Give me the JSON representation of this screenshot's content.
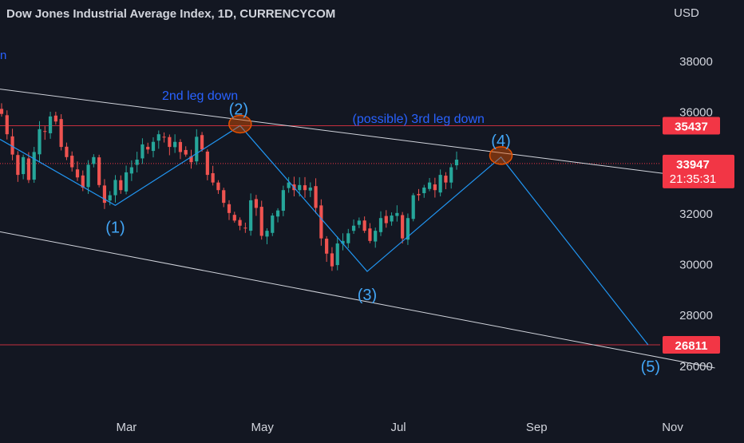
{
  "header": {
    "title": "Dow Jones Industrial Average Index, 1D, CURRENCYCOM",
    "currency": "USD",
    "left_stub": "n"
  },
  "colors": {
    "background": "#131722",
    "up": "#26a69a",
    "down": "#ef5350",
    "wave": "#2196f3",
    "channel": "#d1d4dc",
    "level": "#f23645",
    "annotation": "#2962ff",
    "wave_label": "#42a5f5",
    "pivot_circle": "#e65100"
  },
  "chart_data": {
    "type": "candlestick",
    "title": "Dow Jones Industrial Average Index, 1D, CURRENCYCOM",
    "ylabel": "USD",
    "ylim": [
      25000,
      40000
    ],
    "y_ticks": [
      26000,
      28000,
      30000,
      32000,
      34000,
      36000,
      38000
    ],
    "x_ticks": [
      "Mar",
      "May",
      "Jul",
      "Sep",
      "Nov"
    ],
    "current_price": {
      "value": "33947",
      "countdown": "21:35:31"
    },
    "levels": [
      {
        "label": "35437",
        "value": 35437
      },
      {
        "label": "26811",
        "value": 26811
      }
    ],
    "wave_points": [
      {
        "label": "(1)",
        "date": "2022-02-24",
        "value": 32300
      },
      {
        "label": "(2)",
        "date": "2022-04-21",
        "value": 35437
      },
      {
        "label": "(3)",
        "date": "2022-06-17",
        "value": 29700
      },
      {
        "label": "(4)",
        "date": "2022-08-16",
        "value": 34200
      },
      {
        "label": "(5)",
        "date": "2022-10-21",
        "value": 26811
      }
    ],
    "channel": [
      {
        "name": "upper",
        "from": {
          "date": "2022-01-01",
          "value": 36900
        },
        "to": {
          "date": "2022-11-20",
          "value": 33300
        }
      },
      {
        "name": "lower",
        "from": {
          "date": "2022-01-01",
          "value": 31300
        },
        "to": {
          "date": "2022-11-20",
          "value": 25900
        }
      }
    ],
    "annotations": [
      {
        "text": "2nd leg down",
        "date": "2022-04-03",
        "value": 36450
      },
      {
        "text": "(possible) 3rd leg down",
        "date": "2022-07-10",
        "value": 35550
      }
    ],
    "daily_closes": [
      35900,
      35100,
      34300,
      33500,
      34200,
      33300,
      34400,
      35300,
      35200,
      35800,
      35600,
      34600,
      34200,
      33800,
      33400,
      33000,
      33900,
      34200,
      33100,
      32400,
      32700,
      33300,
      32900,
      33600,
      33800,
      34100,
      34700,
      34500,
      34800,
      35100,
      35000,
      34600,
      34800,
      34400,
      34300,
      34000,
      35000,
      34500,
      33500,
      33200,
      32900,
      32400,
      32000,
      31700,
      31500,
      31400,
      32500,
      32200,
      31100,
      31300,
      31900,
      32100,
      32900,
      33200,
      32900,
      33100,
      32900,
      33000,
      32200,
      31000,
      30400,
      29900,
      30800,
      30900,
      31200,
      31500,
      31700,
      31300,
      30900,
      31300,
      31800,
      31600,
      31900,
      32000,
      31000,
      31800,
      32700,
      32700,
      33000,
      33200,
      32900,
      33500,
      33200,
      33800,
      34100
    ]
  }
}
